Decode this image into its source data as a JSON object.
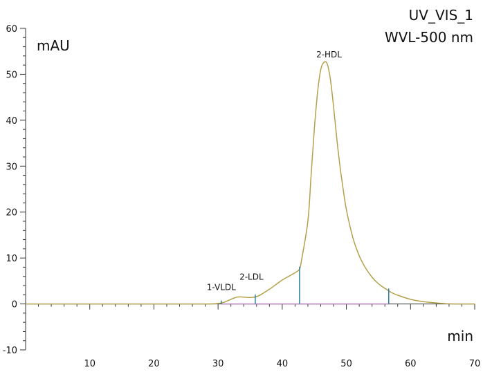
{
  "chart_data": {
    "type": "line",
    "title_line1": "UV_VIS_1",
    "title_line2": "WVL-500 nm",
    "ylabel": "mAU",
    "xlabel": "min",
    "xlim": [
      0,
      70
    ],
    "ylim": [
      -10,
      60
    ],
    "x_ticks": [
      10,
      20,
      30,
      40,
      50,
      60,
      70
    ],
    "y_ticks": [
      -10,
      0,
      10,
      20,
      30,
      40,
      50,
      60
    ],
    "colors": {
      "trace": "#b3a04a",
      "marker": "#2f7ea0",
      "baseline": "#b87fbf",
      "axis": "#333333"
    },
    "series": [
      {
        "x": [
          0,
          10,
          20,
          28,
          30,
          31,
          32,
          33,
          34,
          35,
          36,
          37,
          38,
          39,
          40,
          41,
          42,
          42.7,
          43,
          44,
          44.5,
          45,
          45.5,
          46,
          46.5,
          47,
          47.5,
          48,
          48.5,
          49,
          49.5,
          50,
          51,
          52,
          53,
          54,
          55,
          56,
          57,
          58,
          60,
          62,
          65,
          67,
          70
        ],
        "y": [
          0,
          0,
          0,
          0,
          0.1,
          0.4,
          1.0,
          1.5,
          1.5,
          1.4,
          1.6,
          2.3,
          3.2,
          4.2,
          5.2,
          6.0,
          6.8,
          7.6,
          9.5,
          18,
          28,
          38,
          46,
          51,
          52.6,
          52.3,
          49,
          43,
          36,
          30,
          25,
          20.5,
          14.5,
          10.5,
          7.8,
          5.8,
          4.4,
          3.4,
          2.5,
          1.9,
          1.0,
          0.5,
          0.1,
          0,
          0
        ]
      }
    ],
    "peaks": [
      {
        "label": "1-VLDL",
        "start": 30.5,
        "label_x": 30.5,
        "label_y": 3.0
      },
      {
        "label": "2-LDL",
        "start": 35.8,
        "label_x": 35.2,
        "label_y": 5.3
      },
      {
        "label": "2-HDL",
        "start": 42.7,
        "label_x": 47.3,
        "label_y": 53.7
      }
    ],
    "peak_end": 56.6,
    "integration_baseline": [
      30.5,
      56.6
    ]
  }
}
